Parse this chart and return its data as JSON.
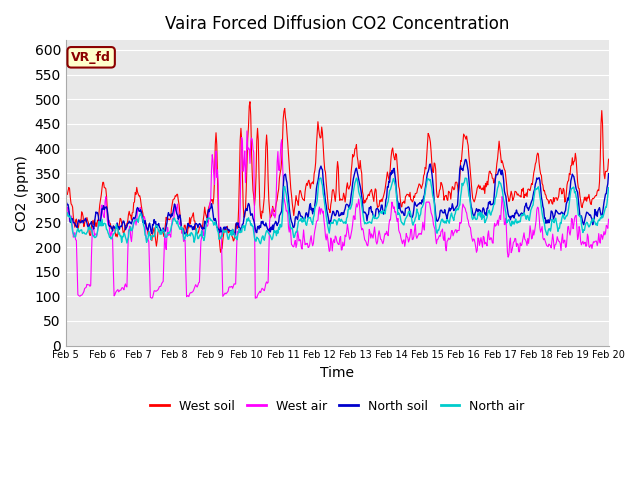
{
  "title": "Vaira Forced Diffusion CO2 Concentration",
  "xlabel": "Time",
  "ylabel": "CO2 (ppm)",
  "ylim": [
    0,
    620
  ],
  "yticks": [
    0,
    50,
    100,
    150,
    200,
    250,
    300,
    350,
    400,
    450,
    500,
    550,
    600
  ],
  "date_labels": [
    "Feb 5",
    "Feb 6",
    "Feb 7",
    "Feb 8",
    "Feb 9",
    "Feb 10",
    "Feb 11",
    "Feb 12",
    "Feb 13",
    "Feb 14",
    "Feb 15",
    "Feb 16",
    "Feb 17",
    "Feb 18",
    "Feb 19",
    "Feb 20"
  ],
  "colors": {
    "west_soil": "#ff0000",
    "west_air": "#ff00ff",
    "north_soil": "#0000cc",
    "north_air": "#00cccc"
  },
  "legend_labels": [
    "West soil",
    "West air",
    "North soil",
    "North air"
  ],
  "vr_fd_label": "VR_fd",
  "vr_fd_bg": "#ffffcc",
  "vr_fd_border": "#8b0000",
  "bg_color": "#e8e8e8",
  "fig_bg": "#ffffff"
}
